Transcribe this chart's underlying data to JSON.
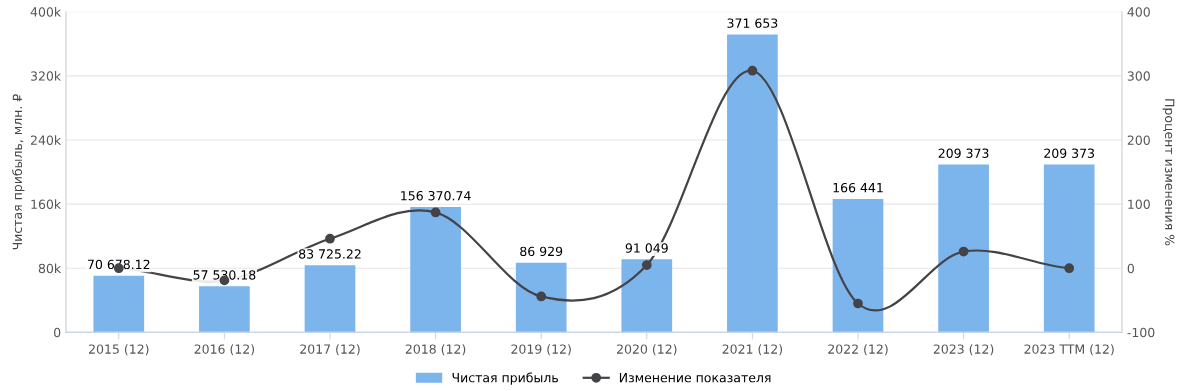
{
  "chart_data": {
    "type": "bar",
    "ylabel": "Чистая прибыль, млн. ₽",
    "y2label": "Процент изменения %",
    "categories": [
      "2015 (12)",
      "2016 (12)",
      "2017 (12)",
      "2018 (12)",
      "2019 (12)",
      "2020 (12)",
      "2021 (12)",
      "2022 (12)",
      "2023 (12)",
      "2023 TTM (12)"
    ],
    "series": [
      {
        "name": "Чистая прибыль",
        "color": "#7cb5ec",
        "values": [
          70678.12,
          57530.18,
          83725.22,
          156370.74,
          86929,
          91049,
          371653,
          166441,
          209373,
          209373
        ],
        "value_labels": [
          "70 678.12",
          "57 530.18",
          "83 725.22",
          "156 370.74",
          "86 929",
          "91 049",
          "371 653",
          "166 441",
          "209 373",
          "209 373"
        ]
      },
      {
        "name": "Изменение показателя",
        "type": "line",
        "axis": "y2",
        "color": "#434348",
        "marker": "circle",
        "values": [
          0,
          -19,
          46,
          87,
          -44,
          5,
          308,
          -55,
          26,
          0
        ]
      }
    ],
    "ylim": [
      0,
      400000
    ],
    "yticks": [
      0,
      {
        "value": 80000,
        "label": "80k"
      },
      {
        "value": 160000,
        "label": "160k"
      },
      {
        "value": 240000,
        "label": "240k"
      },
      {
        "value": 320000,
        "label": "320k"
      },
      {
        "value": 400000,
        "label": "400k"
      }
    ],
    "y2lim": [
      -100,
      400
    ],
    "y2ticks": [
      -100,
      0,
      100,
      200,
      300,
      400
    ],
    "grid": "y",
    "legend": "bottom"
  }
}
